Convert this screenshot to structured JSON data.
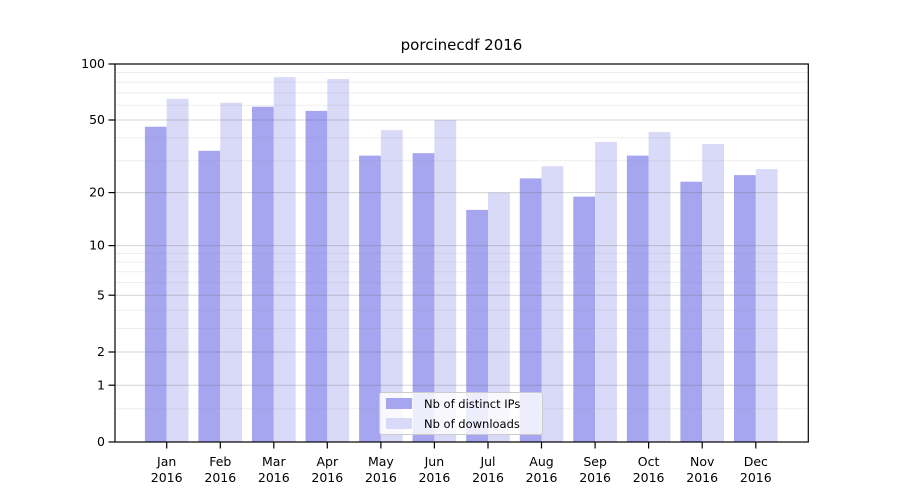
{
  "chart_data": {
    "type": "bar",
    "title": "porcinecdf 2016",
    "categories": [
      "Jan 2016",
      "Feb 2016",
      "Mar 2016",
      "Apr 2016",
      "May 2016",
      "Jun 2016",
      "Jul 2016",
      "Aug 2016",
      "Sep 2016",
      "Oct 2016",
      "Nov 2016",
      "Dec 2016"
    ],
    "x_tick_month_labels": [
      "Jan",
      "Feb",
      "Mar",
      "Apr",
      "May",
      "Jun",
      "Jul",
      "Aug",
      "Sep",
      "Oct",
      "Nov",
      "Dec"
    ],
    "x_tick_year_label": "2016",
    "series": [
      {
        "name": "Nb of distinct IPs",
        "color": "#a5a5f0",
        "values": [
          46,
          34,
          59,
          56,
          32,
          33,
          16,
          24,
          19,
          32,
          23,
          25
        ]
      },
      {
        "name": "Nb of downloads",
        "color": "#d9d9f8",
        "values": [
          65,
          62,
          85,
          83,
          44,
          50,
          20,
          28,
          38,
          43,
          37,
          27
        ]
      }
    ],
    "y_scale": "log10(value + 1)",
    "ylim": [
      0,
      100
    ],
    "y_ticks": [
      100,
      50,
      20,
      10,
      5,
      2,
      1,
      0
    ],
    "y_minor_gridlines": [
      90,
      80,
      70,
      60,
      40,
      30,
      9,
      8,
      7,
      6,
      4,
      3,
      0.5
    ],
    "grid": true,
    "legend_position": "lower center"
  }
}
